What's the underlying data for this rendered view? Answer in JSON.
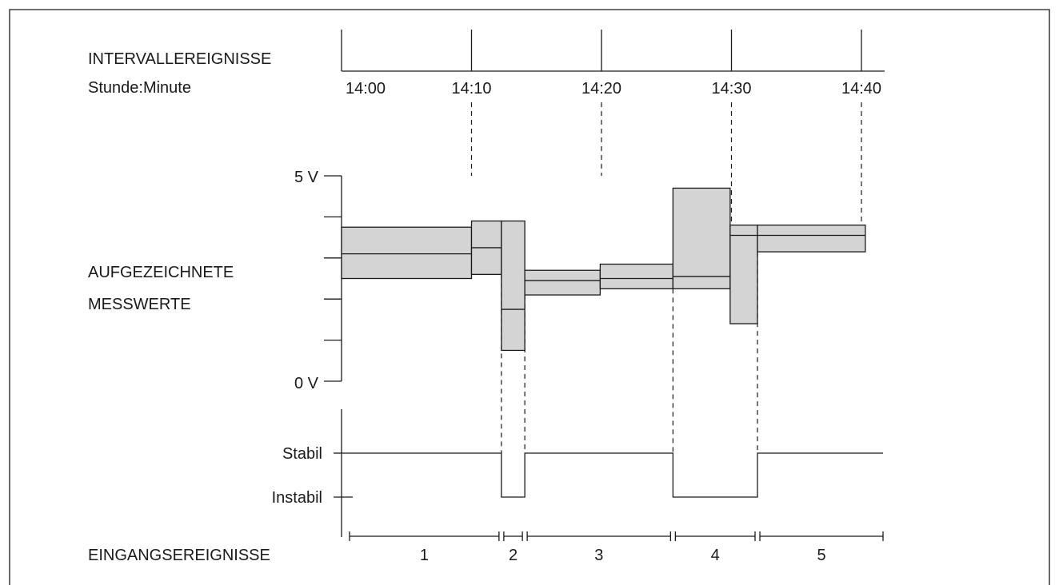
{
  "labels": {
    "interval_events": "INTERVALLEREIGNISSE",
    "time_unit": "Stunde:Minute",
    "recorded_values_line1": "AUFGEZEICHNETE",
    "recorded_values_line2": "MESSWERTE",
    "volt_max": "5 V",
    "volt_min": "0 V",
    "state_stable": "Stabil",
    "state_unstable": "Instabil",
    "input_events": "EINGANGSEREIGNISSE"
  },
  "time_ticks": [
    "14:00",
    "14:10",
    "14:20",
    "14:30",
    "14:40"
  ],
  "chart_data": {
    "type": "timing-diagram",
    "voltage_range": [
      0,
      5
    ],
    "measurement_boxes": [
      {
        "start_min": 0,
        "end_min": 10,
        "min_v": 2.5,
        "max_v": 3.75,
        "mean_v": 3.1
      },
      {
        "start_min": 10,
        "end_min": 12.3,
        "min_v": 2.6,
        "max_v": 3.9,
        "mean_v": 3.25
      },
      {
        "start_min": 12.3,
        "end_min": 14.1,
        "min_v": 0.75,
        "max_v": 3.9,
        "mean_v": 1.75
      },
      {
        "start_min": 14.1,
        "end_min": 19.9,
        "min_v": 2.1,
        "max_v": 2.7,
        "mean_v": 2.45
      },
      {
        "start_min": 19.9,
        "end_min": 25.5,
        "min_v": 2.25,
        "max_v": 2.85,
        "mean_v": 2.5
      },
      {
        "start_min": 25.5,
        "end_min": 29.9,
        "min_v": 2.25,
        "max_v": 4.7,
        "mean_v": 2.55
      },
      {
        "start_min": 29.9,
        "end_min": 32.0,
        "min_v": 1.4,
        "max_v": 3.8,
        "mean_v": 3.55
      },
      {
        "start_min": 32.0,
        "end_min": 40.3,
        "min_v": 3.15,
        "max_v": 3.8,
        "mean_v": 3.55
      }
    ],
    "input_events": [
      {
        "label": "1",
        "start_min": 0,
        "end_min": 12.3,
        "state": "Stabil"
      },
      {
        "label": "2",
        "start_min": 12.3,
        "end_min": 14.1,
        "state": "Instabil"
      },
      {
        "label": "3",
        "start_min": 14.1,
        "end_min": 25.5,
        "state": "Stabil"
      },
      {
        "label": "4",
        "start_min": 25.5,
        "end_min": 32.0,
        "state": "Instabil"
      },
      {
        "label": "5",
        "start_min": 32.0,
        "end_min": 41.0,
        "state": "Stabil"
      }
    ]
  }
}
